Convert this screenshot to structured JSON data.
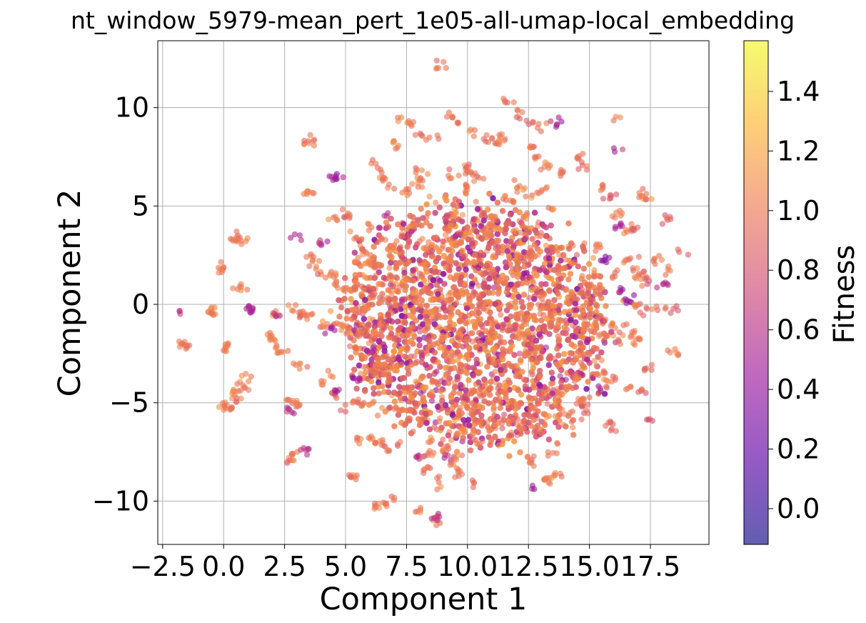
{
  "chart_data": {
    "type": "scatter",
    "title": "nt_window_5979-mean_pert_1e05-all-umap-local_embedding",
    "xlabel": "Component 1",
    "ylabel": "Component 2",
    "xlim": [
      -2.7,
      19.9
    ],
    "ylim": [
      -12.2,
      13.4
    ],
    "xticks": [
      -2.5,
      0.0,
      2.5,
      5.0,
      7.5,
      10.0,
      12.5,
      15.0,
      17.5
    ],
    "xtick_labels": [
      "−2.5",
      "0.0",
      "2.5",
      "5.0",
      "7.5",
      "10.0",
      "12.5",
      "15.0",
      "17.5"
    ],
    "yticks": [
      10,
      5,
      0,
      -5,
      -10
    ],
    "ytick_labels": [
      "10",
      "5",
      "0",
      "−5",
      "−10"
    ],
    "grid": true,
    "colormap": "plasma",
    "point_alpha": 0.6,
    "colorbar": {
      "label": "Fitness",
      "range": [
        -0.12,
        1.57
      ],
      "ticks": [
        0.0,
        0.2,
        0.4,
        0.6,
        0.8,
        1.0,
        1.2,
        1.4
      ],
      "tick_labels": [
        "0.0",
        "0.2",
        "0.4",
        "0.6",
        "0.8",
        "1.0",
        "1.2",
        "1.4"
      ],
      "stops": [
        "#0d0887",
        "#5c01a6",
        "#9c179e",
        "#cc4778",
        "#ed7953",
        "#fdb42f",
        "#f0f921"
      ]
    },
    "dense_cluster": {
      "center": [
        10.3,
        -1.0
      ],
      "radius_x": 5.0,
      "radius_y": 5.6
    },
    "points": [
      [
        9.0,
        12.2,
        1.0
      ],
      [
        8.9,
        12.1,
        1.0
      ],
      [
        11.7,
        10.2,
        0.95
      ],
      [
        12.0,
        9.6,
        1.0
      ],
      [
        12.6,
        9.2,
        0.9
      ],
      [
        13.1,
        9.1,
        1.0
      ],
      [
        13.6,
        9.1,
        0.6
      ],
      [
        12.2,
        9.8,
        1.0
      ],
      [
        9.3,
        9.5,
        1.0
      ],
      [
        9.6,
        9.2,
        1.0
      ],
      [
        10.2,
        8.8,
        1.0
      ],
      [
        10.8,
        8.4,
        0.95
      ],
      [
        11.2,
        8.2,
        1.0
      ],
      [
        11.5,
        8.5,
        1.0
      ],
      [
        7.2,
        9.4,
        1.0
      ],
      [
        7.6,
        9.2,
        1.0
      ],
      [
        8.2,
        8.5,
        1.0
      ],
      [
        8.6,
        8.5,
        1.0
      ],
      [
        3.4,
        8.2,
        1.0
      ],
      [
        3.6,
        8.3,
        1.0
      ],
      [
        12.5,
        8.0,
        1.0
      ],
      [
        12.8,
        7.4,
        1.0
      ],
      [
        13.2,
        7.1,
        1.0
      ],
      [
        13.8,
        6.7,
        1.0
      ],
      [
        6.2,
        7.0,
        1.0
      ],
      [
        6.4,
        6.8,
        1.0
      ],
      [
        6.6,
        6.4,
        1.0
      ],
      [
        6.9,
        6.1,
        1.0
      ],
      [
        8.1,
        6.4,
        1.0
      ],
      [
        7.9,
        6.0,
        1.0
      ],
      [
        7.6,
        5.8,
        1.0
      ],
      [
        9.9,
        6.9,
        1.0
      ],
      [
        10.2,
        6.7,
        1.0
      ],
      [
        10.6,
        6.4,
        1.0
      ],
      [
        10.0,
        5.9,
        1.0
      ],
      [
        14.6,
        7.5,
        1.0
      ],
      [
        14.8,
        7.0,
        0.95
      ],
      [
        16.0,
        7.8,
        0.6
      ],
      [
        16.2,
        9.5,
        0.95
      ],
      [
        12.0,
        6.0,
        1.0
      ],
      [
        12.3,
        5.8,
        1.0
      ],
      [
        12.8,
        5.7,
        1.0
      ],
      [
        13.2,
        5.9,
        1.0
      ],
      [
        11.6,
        5.5,
        1.0
      ],
      [
        4.6,
        6.4,
        0.5
      ],
      [
        4.7,
        6.4,
        0.5
      ],
      [
        3.4,
        5.6,
        1.0
      ],
      [
        3.5,
        5.7,
        1.0
      ],
      [
        5.0,
        4.6,
        1.0
      ],
      [
        4.9,
        4.5,
        0.9
      ],
      [
        4.5,
        4.4,
        1.0
      ],
      [
        0.5,
        3.5,
        0.9
      ],
      [
        0.6,
        3.3,
        1.0
      ],
      [
        0.7,
        3.2,
        1.0
      ],
      [
        3.6,
        2.3,
        1.0
      ],
      [
        3.8,
        2.0,
        1.0
      ],
      [
        3.9,
        1.6,
        1.0
      ],
      [
        5.8,
        2.6,
        1.0
      ],
      [
        6.0,
        2.2,
        1.0
      ],
      [
        6.2,
        2.0,
        1.0
      ],
      [
        5.6,
        2.0,
        1.0
      ],
      [
        4.5,
        1.5,
        1.0
      ],
      [
        4.6,
        1.2,
        1.0
      ],
      [
        4.8,
        0.8,
        1.0
      ],
      [
        3.0,
        3.3,
        0.55
      ],
      [
        4.0,
        3.1,
        0.6
      ],
      [
        6.0,
        4.0,
        1.0
      ],
      [
        6.6,
        4.6,
        0.6
      ],
      [
        17.2,
        5.6,
        1.0
      ],
      [
        17.4,
        5.4,
        1.0
      ],
      [
        16.2,
        4.5,
        1.0
      ],
      [
        16.6,
        3.8,
        1.0
      ],
      [
        16.8,
        3.8,
        0.9
      ],
      [
        16.2,
        3.9,
        0.5
      ],
      [
        16.5,
        2.2,
        1.0
      ],
      [
        16.8,
        1.9,
        1.0
      ],
      [
        17.1,
        1.5,
        1.0
      ],
      [
        17.4,
        1.3,
        0.9
      ],
      [
        17.0,
        1.2,
        1.0
      ],
      [
        17.8,
        2.2,
        1.0
      ],
      [
        18.2,
        1.7,
        1.0
      ],
      [
        18.9,
        2.6,
        0.9
      ],
      [
        18.2,
        4.4,
        0.85
      ],
      [
        18.1,
        1.0,
        0.6
      ],
      [
        15.6,
        2.3,
        0.35
      ],
      [
        15.3,
        2.9,
        1.0
      ],
      [
        16.0,
        1.5,
        1.0
      ],
      [
        16.2,
        0.6,
        0.45
      ],
      [
        16.6,
        0.2,
        0.4
      ],
      [
        16.9,
        -0.1,
        1.0
      ],
      [
        17.3,
        -0.4,
        0.9
      ],
      [
        17.8,
        -0.2,
        1.0
      ],
      [
        18.4,
        -0.3,
        0.85
      ],
      [
        18.5,
        -2.5,
        1.0
      ],
      [
        15.5,
        -0.8,
        1.0
      ],
      [
        15.9,
        -1.0,
        1.0
      ],
      [
        16.3,
        -1.3,
        1.0
      ],
      [
        16.8,
        -1.5,
        1.0
      ],
      [
        17.0,
        -1.8,
        1.0
      ],
      [
        16.2,
        -2.0,
        1.0
      ],
      [
        15.6,
        -1.6,
        1.0
      ],
      [
        15.3,
        -3.0,
        1.0
      ],
      [
        15.5,
        -3.5,
        1.0
      ],
      [
        15.7,
        -4.0,
        1.0
      ],
      [
        16.0,
        -3.7,
        0.9
      ],
      [
        15.3,
        -4.4,
        0.5
      ],
      [
        17.4,
        -3.3,
        0.9
      ],
      [
        17.2,
        -4.4,
        0.9
      ],
      [
        16.6,
        -4.4,
        1.0
      ],
      [
        17.4,
        -5.9,
        0.85
      ],
      [
        14.8,
        -4.8,
        1.0
      ],
      [
        14.6,
        -5.0,
        1.0
      ],
      [
        15.0,
        -5.3,
        0.9
      ],
      [
        14.0,
        -5.5,
        1.0
      ],
      [
        13.8,
        -5.8,
        1.0
      ],
      [
        14.2,
        -6.0,
        1.0
      ],
      [
        14.8,
        -5.6,
        0.9
      ],
      [
        15.8,
        -6.1,
        0.9
      ],
      [
        16.1,
        -6.4,
        0.9
      ],
      [
        13.6,
        -7.3,
        1.0
      ],
      [
        13.4,
        -7.5,
        1.0
      ],
      [
        13.7,
        -8.6,
        1.0
      ],
      [
        13.5,
        -8.8,
        1.0
      ],
      [
        13.2,
        -9.0,
        1.0
      ],
      [
        12.5,
        -7.9,
        1.0
      ],
      [
        12.6,
        -8.0,
        1.0
      ],
      [
        12.2,
        -6.2,
        1.0
      ],
      [
        12.8,
        -6.5,
        0.9
      ],
      [
        12.7,
        -9.3,
        0.55
      ],
      [
        11.0,
        -7.0,
        1.0
      ],
      [
        10.5,
        -6.9,
        1.0
      ],
      [
        9.0,
        -7.3,
        1.0
      ],
      [
        9.2,
        -7.0,
        1.0
      ],
      [
        8.5,
        -7.0,
        1.0
      ],
      [
        8.0,
        -7.8,
        0.6
      ],
      [
        8.4,
        -7.6,
        1.0
      ],
      [
        9.2,
        -7.8,
        0.6
      ],
      [
        9.6,
        -7.7,
        1.0
      ],
      [
        9.4,
        -8.1,
        1.0
      ],
      [
        8.3,
        -8.4,
        1.0
      ],
      [
        9.6,
        -8.6,
        1.0
      ],
      [
        8.8,
        -10.9,
        1.0
      ],
      [
        8.7,
        -10.9,
        0.6
      ],
      [
        8.1,
        -10.5,
        1.0
      ],
      [
        8.8,
        -9.1,
        1.0
      ],
      [
        10.3,
        -9.1,
        1.0
      ],
      [
        6.9,
        -10.0,
        1.0
      ],
      [
        6.6,
        -10.1,
        1.0
      ],
      [
        6.3,
        -10.3,
        1.0
      ],
      [
        6.2,
        -10.2,
        1.0
      ],
      [
        5.4,
        -8.7,
        1.0
      ],
      [
        5.4,
        -8.8,
        1.0
      ],
      [
        6.1,
        -6.7,
        1.0
      ],
      [
        6.3,
        -6.9,
        1.0
      ],
      [
        6.7,
        -7.3,
        0.95
      ],
      [
        7.1,
        -7.0,
        0.9
      ],
      [
        5.5,
        -6.9,
        1.0
      ],
      [
        6.0,
        -5.0,
        1.0
      ],
      [
        5.8,
        -5.1,
        1.0
      ],
      [
        5.5,
        -5.0,
        1.0
      ],
      [
        4.9,
        -5.4,
        0.9
      ],
      [
        4.5,
        -4.5,
        1.0
      ],
      [
        4.6,
        -4.4,
        0.5
      ],
      [
        4.0,
        -3.9,
        1.0
      ],
      [
        4.2,
        -3.5,
        1.0
      ],
      [
        3.0,
        -3.2,
        1.0
      ],
      [
        3.2,
        -3.1,
        1.0
      ],
      [
        2.7,
        -5.0,
        1.0
      ],
      [
        2.9,
        -5.0,
        1.0
      ],
      [
        3.1,
        -5.1,
        1.0
      ],
      [
        2.6,
        -5.3,
        0.6
      ],
      [
        2.7,
        -7.9,
        1.0
      ],
      [
        2.8,
        -7.7,
        1.0
      ],
      [
        2.9,
        -7.6,
        1.0
      ],
      [
        3.3,
        -7.4,
        0.6
      ],
      [
        0.9,
        -3.7,
        1.0
      ],
      [
        0.8,
        -4.0,
        1.0
      ],
      [
        0.6,
        -4.4,
        1.0
      ],
      [
        0.5,
        -4.8,
        1.0
      ],
      [
        0.3,
        -5.1,
        1.0
      ],
      [
        0.1,
        -5.3,
        1.0
      ],
      [
        0.0,
        -5.2,
        1.0
      ],
      [
        0.1,
        -2.2,
        1.0
      ],
      [
        0.1,
        -2.1,
        1.0
      ],
      [
        -1.5,
        -2.1,
        1.0
      ],
      [
        -1.6,
        -2.0,
        1.0
      ],
      [
        -1.7,
        -0.4,
        0.6
      ],
      [
        -0.5,
        -0.3,
        1.0
      ],
      [
        -0.4,
        -0.4,
        1.0
      ],
      [
        1.1,
        -0.2,
        0.6
      ],
      [
        1.0,
        -0.3,
        0.5
      ],
      [
        1.8,
        -1.6,
        1.0
      ],
      [
        1.9,
        -1.8,
        1.0
      ],
      [
        2.2,
        -2.3,
        1.0
      ],
      [
        2.4,
        -2.5,
        1.0
      ],
      [
        2.0,
        -0.5,
        1.0
      ],
      [
        2.1,
        -0.6,
        0.6
      ],
      [
        2.8,
        -0.2,
        1.0
      ],
      [
        3.1,
        -0.4,
        1.0
      ],
      [
        3.2,
        -0.6,
        1.0
      ],
      [
        3.5,
        -0.5,
        1.0
      ],
      [
        4.1,
        -1.1,
        1.0
      ],
      [
        4.4,
        -1.3,
        0.5
      ],
      [
        4.7,
        -1.0,
        1.0
      ],
      [
        5.0,
        -1.0,
        1.0
      ],
      [
        5.2,
        -1.5,
        1.0
      ],
      [
        5.4,
        -1.3,
        0.55
      ],
      [
        5.6,
        -1.4,
        1.0
      ],
      [
        -0.1,
        1.8,
        1.0
      ],
      [
        0.0,
        1.9,
        1.0
      ],
      [
        0.6,
        0.9,
        1.0
      ],
      [
        0.7,
        0.8,
        1.0
      ],
      [
        5.2,
        0.8,
        1.0
      ],
      [
        5.4,
        1.0,
        1.0
      ],
      [
        5.6,
        0.9,
        1.0
      ],
      [
        5.6,
        2.8,
        1.0
      ],
      [
        5.4,
        3.4,
        1.0
      ],
      [
        6.5,
        3.2,
        1.0
      ],
      [
        6.0,
        -2.3,
        0.5
      ],
      [
        6.3,
        -3.5,
        1.0
      ],
      [
        5.8,
        -3.2,
        1.0
      ],
      [
        5.4,
        -3.8,
        0.5
      ],
      [
        7.0,
        8.1,
        1.0
      ],
      [
        8.0,
        6.8,
        1.0
      ],
      [
        9.3,
        6.6,
        1.0
      ],
      [
        11.8,
        5.2,
        1.0
      ],
      [
        13.5,
        4.9,
        1.0
      ],
      [
        15.6,
        6.0,
        1.0
      ],
      [
        15.8,
        5.5,
        0.9
      ],
      [
        13.8,
        9.3,
        0.5
      ]
    ]
  }
}
